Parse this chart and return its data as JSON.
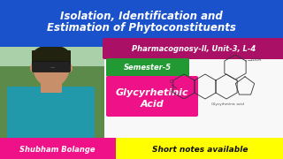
{
  "bg_color": "#e8e8e8",
  "top_banner_color": "#1a52cc",
  "top_banner_text": "Isolation, Identification and\nEstimation of Phytoconstituents",
  "top_banner_text_color": "#ffffff",
  "pharma_bg": "#aa1166",
  "pharma_text": "Pharmacognosy-ll, Unit-3, L-4",
  "pharma_text_color": "#ffffff",
  "semester_bg": "#229933",
  "semester_text": "Semester-5",
  "semester_text_color": "#ffffff",
  "topic_bg": "#ee1188",
  "topic_text": "Glycyrhetinic\nAcid",
  "topic_text_color": "#ffffff",
  "bottom_left_bg": "#ee1188",
  "bottom_left_text": "Shubham Bolange",
  "bottom_left_text_color": "#ffffff",
  "bottom_right_bg": "#ffff00",
  "bottom_right_text": "Short notes available",
  "bottom_right_text_color": "#111111",
  "photo_bg": "#5b8a4a",
  "sky_color": "#aad0aa",
  "shirt_color": "#2299aa",
  "skin_color": "#c8906a",
  "hair_color": "#222211",
  "mol_bg": "#f0f0f0",
  "mol_line_color": "#333333"
}
